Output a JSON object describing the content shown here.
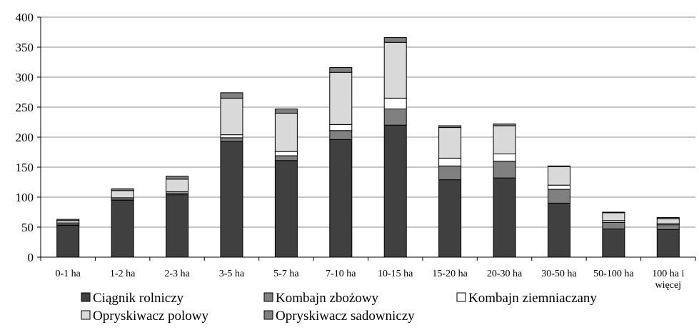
{
  "chart_data": {
    "type": "bar",
    "stacked": true,
    "categories": [
      "0-1 ha",
      "1-2 ha",
      "2-3 ha",
      "3-5 ha",
      "5-7 ha",
      "7-10 ha",
      "10-15 ha",
      "15-20 ha",
      "20-30 ha",
      "30-50 ha",
      "50-100 ha",
      "100 ha i więcej"
    ],
    "series": [
      {
        "name": "Ciągnik rolniczy",
        "color": "#404040",
        "values": [
          53,
          95,
          104,
          193,
          161,
          196,
          220,
          129,
          132,
          90,
          47,
          46
        ]
      },
      {
        "name": "Kombajn zbożowy",
        "color": "#808080",
        "values": [
          2,
          2,
          3,
          6,
          8,
          15,
          27,
          23,
          28,
          23,
          11,
          8
        ]
      },
      {
        "name": "Kombajn ziemniaczany",
        "color": "#ffffff",
        "values": [
          2,
          2,
          2,
          5,
          7,
          10,
          18,
          13,
          12,
          7,
          3,
          2
        ]
      },
      {
        "name": "Opryskiwacz polowy",
        "color": "#d9d9d9",
        "values": [
          4,
          12,
          21,
          61,
          64,
          87,
          93,
          51,
          47,
          31,
          13,
          8
        ]
      },
      {
        "name": "Opryskiwacz sadowniczy",
        "color": "#808080",
        "values": [
          2,
          3,
          5,
          9,
          7,
          8,
          8,
          3,
          3,
          1,
          1,
          2
        ]
      }
    ],
    "xlabel": "",
    "ylabel": "",
    "ylim": [
      0,
      400
    ],
    "yticks": [
      0,
      50,
      100,
      150,
      200,
      250,
      300,
      350,
      400
    ],
    "grid": true,
    "legend_position": "bottom"
  }
}
